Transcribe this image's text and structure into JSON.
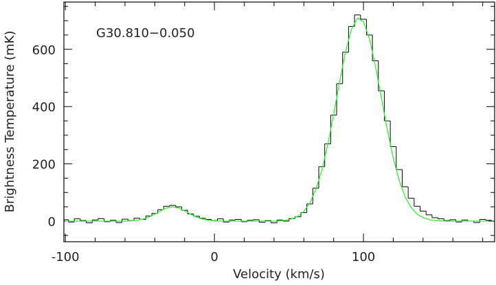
{
  "chart_data": {
    "type": "line",
    "annotation": "G30.810−0.050",
    "x_label": "Velocity (km/s)",
    "y_label": "Brightness Temperature (mK)",
    "xlim": [
      -101,
      188
    ],
    "ylim": [
      -72,
      765
    ],
    "xticks": [
      -100,
      0,
      100
    ],
    "yticks": [
      0,
      200,
      400,
      600
    ],
    "xminorticks": [
      -80,
      -60,
      -40,
      -20,
      20,
      40,
      60,
      80,
      120,
      140,
      160,
      180
    ],
    "yminorticks": [
      -50,
      50,
      100,
      150,
      250,
      300,
      350,
      450,
      500,
      550,
      650,
      700,
      750
    ],
    "x": [
      -100,
      -96,
      -92,
      -88,
      -84,
      -80,
      -76,
      -72,
      -68,
      -64,
      -60,
      -56,
      -52,
      -48,
      -44,
      -40,
      -36,
      -32,
      -28,
      -24,
      -20,
      -16,
      -12,
      -8,
      -4,
      0,
      4,
      8,
      12,
      16,
      20,
      24,
      28,
      32,
      36,
      40,
      44,
      48,
      52,
      56,
      60,
      64,
      68,
      72,
      76,
      80,
      84,
      88,
      92,
      96,
      100,
      104,
      108,
      112,
      116,
      120,
      124,
      128,
      132,
      136,
      140,
      144,
      148,
      152,
      156,
      160,
      164,
      168,
      172,
      176,
      180,
      184
    ],
    "series": [
      {
        "name": "observed",
        "style": "step",
        "color": "#000000",
        "values": [
          5,
          -3,
          8,
          2,
          -6,
          4,
          9,
          -2,
          3,
          -5,
          7,
          2,
          10,
          6,
          18,
          27,
          40,
          52,
          55,
          50,
          38,
          25,
          17,
          10,
          6,
          2,
          8,
          -3,
          4,
          6,
          -2,
          3,
          5,
          -4,
          2,
          -6,
          4,
          0,
          9,
          15,
          30,
          60,
          115,
          190,
          270,
          370,
          480,
          590,
          680,
          720,
          705,
          650,
          560,
          455,
          350,
          260,
          180,
          120,
          80,
          52,
          35,
          22,
          12,
          8,
          2,
          5,
          -3,
          4,
          0,
          -5,
          6,
          3
        ]
      },
      {
        "name": "fit",
        "style": "line",
        "color": "#33ee33",
        "values": [
          0,
          0,
          0,
          0,
          0,
          0,
          0,
          0,
          0,
          0,
          0,
          1,
          3,
          7,
          14,
          24,
          36,
          46,
          50,
          46,
          36,
          24,
          14,
          7,
          3,
          1,
          0,
          0,
          0,
          0,
          0,
          0,
          0,
          0,
          0,
          0,
          1,
          3,
          8,
          17,
          34,
          63,
          110,
          177,
          266,
          374,
          488,
          593,
          671,
          709,
          696,
          637,
          542,
          431,
          318,
          219,
          141,
          84,
          47,
          24,
          12,
          5,
          2,
          1,
          0,
          0,
          0,
          0,
          0,
          0,
          0,
          0
        ]
      }
    ]
  }
}
